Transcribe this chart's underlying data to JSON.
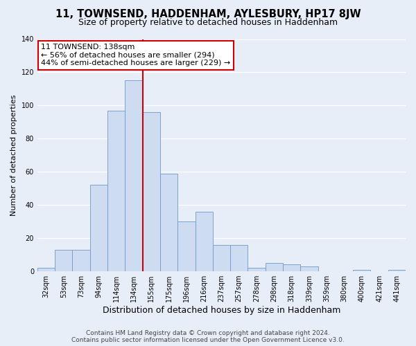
{
  "title": "11, TOWNSEND, HADDENHAM, AYLESBURY, HP17 8JW",
  "subtitle": "Size of property relative to detached houses in Haddenham",
  "xlabel": "Distribution of detached houses by size in Haddenham",
  "ylabel": "Number of detached properties",
  "bar_labels": [
    "32sqm",
    "53sqm",
    "73sqm",
    "94sqm",
    "114sqm",
    "134sqm",
    "155sqm",
    "175sqm",
    "196sqm",
    "216sqm",
    "237sqm",
    "257sqm",
    "278sqm",
    "298sqm",
    "318sqm",
    "339sqm",
    "359sqm",
    "380sqm",
    "400sqm",
    "421sqm",
    "441sqm"
  ],
  "bar_values": [
    2,
    13,
    13,
    52,
    97,
    115,
    96,
    59,
    30,
    36,
    16,
    16,
    2,
    5,
    4,
    3,
    0,
    0,
    1,
    0,
    1
  ],
  "bar_color": "#cddcf0",
  "bar_edge_color": "#7098c8",
  "vline_x_index": 5,
  "vline_color": "#cc0000",
  "annotation_title": "11 TOWNSEND: 138sqm",
  "annotation_line1": "← 56% of detached houses are smaller (294)",
  "annotation_line2": "44% of semi-detached houses are larger (229) →",
  "annotation_box_color": "#ffffff",
  "annotation_box_edge": "#cc0000",
  "ylim": [
    0,
    140
  ],
  "yticks": [
    0,
    20,
    40,
    60,
    80,
    100,
    120,
    140
  ],
  "footer1": "Contains HM Land Registry data © Crown copyright and database right 2024.",
  "footer2": "Contains public sector information licensed under the Open Government Licence v3.0.",
  "background_color": "#e8eef8",
  "plot_bg_color": "#e8eef8",
  "title_fontsize": 10.5,
  "subtitle_fontsize": 9,
  "xlabel_fontsize": 9,
  "ylabel_fontsize": 8,
  "tick_fontsize": 7,
  "footer_fontsize": 6.5,
  "annot_fontsize": 8
}
